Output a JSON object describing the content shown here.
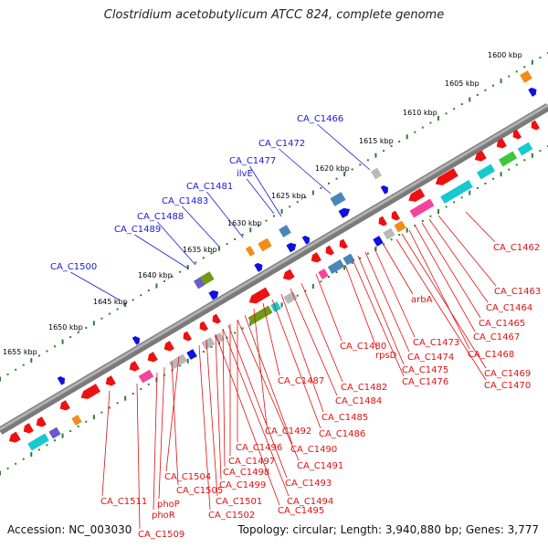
{
  "title": "Clostridium acetobutylicum ATCC 824, complete genome",
  "footer": {
    "accession": "Accession: NC_003030",
    "summary": "Topology: circular; Length: 3,940,880 bp; Genes: 3,777"
  },
  "colors": {
    "backbone": "#8c8c8c",
    "tick_dot": "#2e7d32",
    "forward_label": "#1a1ad6",
    "reverse_label": "#e01010",
    "gene_red": "#ee1111",
    "gene_pink": "#f2449a",
    "gene_cyan": "#18c8d0",
    "gene_blue": "#1010dd",
    "gene_steel": "#4a86b8",
    "gene_olive": "#6f9a18",
    "gene_orange": "#f28c18",
    "gene_gray": "#b8b8b8",
    "gene_purple": "#6a5acd",
    "gene_green": "#3cc83c"
  },
  "scale_labels": [
    "1600 kbp",
    "1605 kbp",
    "1610 kbp",
    "1615 kbp",
    "1620 kbp",
    "1625 kbp",
    "1630 kbp",
    "1635 kbp",
    "1640 kbp",
    "1645 kbp",
    "1650 kbp",
    "1655 kbp"
  ],
  "forward_labels": [
    "CA_C1466",
    "CA_C1472",
    "CA_C1477",
    "ilvE",
    "CA_C1481",
    "CA_C1483",
    "CA_C1488",
    "CA_C1489",
    "CA_C1500"
  ],
  "reverse_labels": [
    "CA_C1462",
    "CA_C1463",
    "CA_C1464",
    "CA_C1465",
    "CA_C1467",
    "CA_C1468",
    "CA_C1469",
    "CA_C1470",
    "arbA",
    "CA_C1473",
    "CA_C1474",
    "CA_C1475",
    "CA_C1476",
    "rpsD",
    "CA_C1480",
    "CA_C1482",
    "CA_C1484",
    "CA_C1485",
    "CA_C1486",
    "CA_C1487",
    "CA_C1490",
    "CA_C1491",
    "CA_C1492",
    "CA_C1493",
    "CA_C1494",
    "CA_C1495",
    "CA_C1496",
    "CA_C1497",
    "CA_C1498",
    "CA_C1499",
    "CA_C1501",
    "CA_C1502",
    "CA_C1504",
    "CA_C1505",
    "phoP",
    "phoR",
    "CA_C1509",
    "CA_C1511"
  ]
}
